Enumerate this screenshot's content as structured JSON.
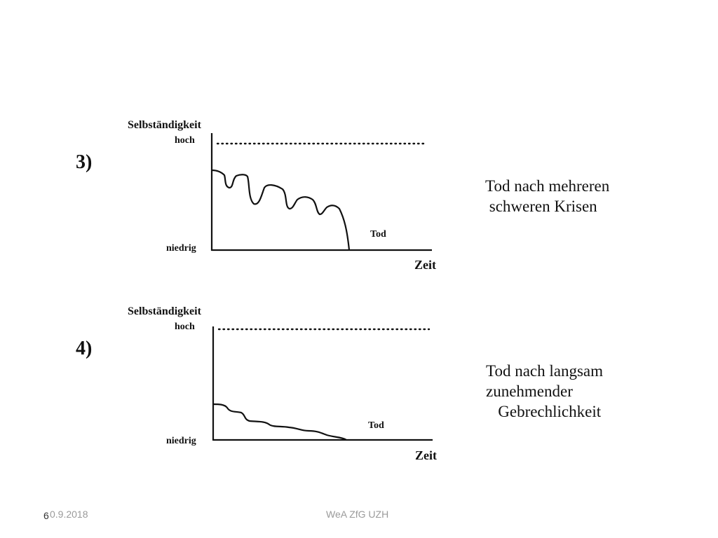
{
  "panels": [
    {
      "number": "3)",
      "y_title": "Selbständigkeit",
      "y_high": "hoch",
      "y_low": "niedrig",
      "x_label": "Zeit",
      "end_label": "Tod",
      "caption": "Tod nach mehreren\n schweren Krisen"
    },
    {
      "number": "4)",
      "y_title": "Selbständigkeit",
      "y_high": "hoch",
      "y_low": "niedrig",
      "x_label": "Zeit",
      "end_label": "Tod",
      "caption": "Tod nach langsam\nzunehmender\n   Gebrechlichkeit"
    }
  ],
  "footer": {
    "date": "0.9.2018",
    "page_number": "6",
    "center": "WeA ZfG UZH"
  },
  "colors": {
    "ink": "#111111",
    "footer": "#9a9a9a"
  }
}
